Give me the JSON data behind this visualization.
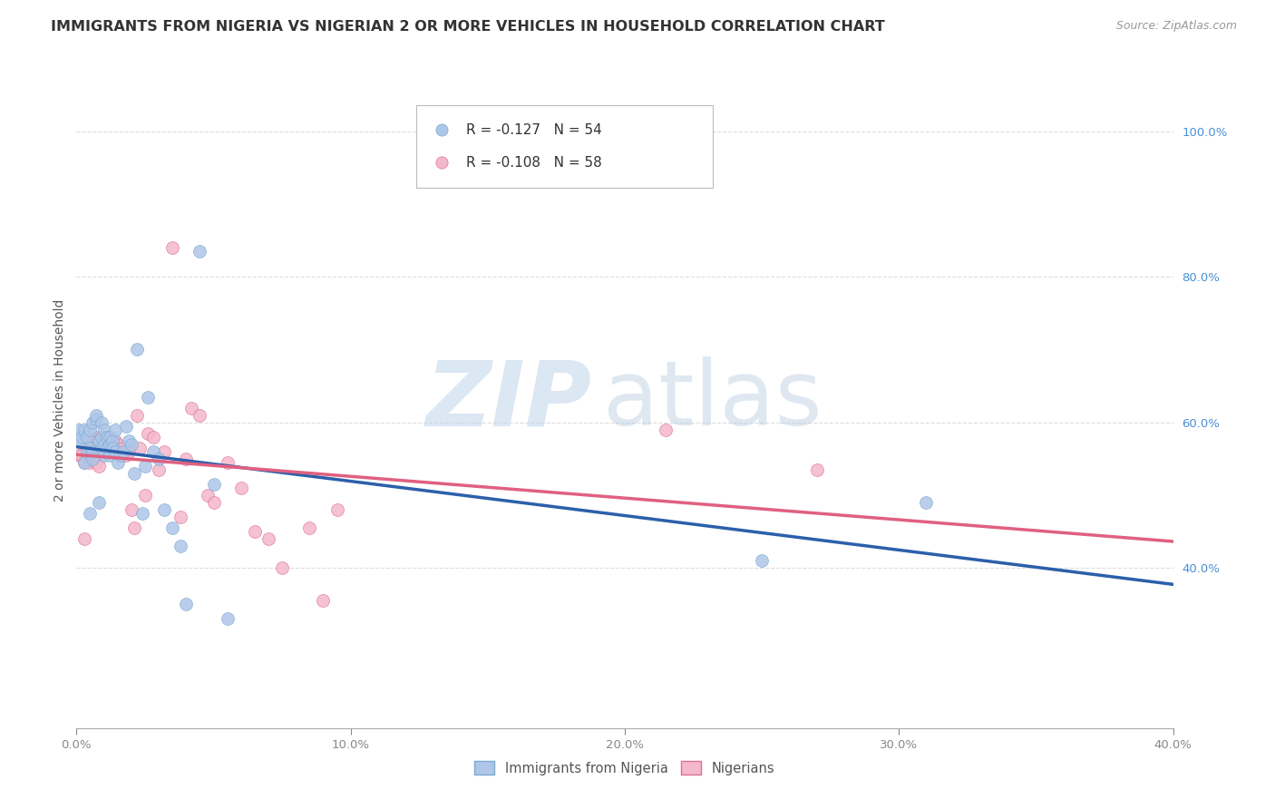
{
  "title": "IMMIGRANTS FROM NIGERIA VS NIGERIAN 2 OR MORE VEHICLES IN HOUSEHOLD CORRELATION CHART",
  "source": "Source: ZipAtlas.com",
  "ylabel_label": "2 or more Vehicles in Household",
  "xlim": [
    0.0,
    0.4
  ],
  "ylim": [
    0.18,
    1.08
  ],
  "xticks": [
    0.0,
    0.1,
    0.2,
    0.3,
    0.4
  ],
  "xtick_labels": [
    "0.0%",
    "10.0%",
    "20.0%",
    "30.0%",
    "40.0%"
  ],
  "yticks_right": [
    0.4,
    0.6,
    0.8,
    1.0
  ],
  "ytick_labels_right": [
    "40.0%",
    "60.0%",
    "80.0%",
    "100.0%"
  ],
  "watermark_zip": "ZIP",
  "watermark_atlas": "atlas",
  "legend1_label": "R = -0.127   N = 54",
  "legend2_label": "R = -0.108   N = 58",
  "scatter1_color": "#aec6e8",
  "scatter2_color": "#f4b8cc",
  "scatter1_edge": "#7aaad0",
  "scatter2_edge": "#e07090",
  "trend1_color": "#2c5faa",
  "trend2_color": "#e06080",
  "marker_size": 100,
  "grid_color": "#dddddd",
  "background_color": "#ffffff",
  "legend_bottom_label1": "Immigrants from Nigeria",
  "legend_bottom_label2": "Nigerians",
  "blue_series_x": [
    0.001,
    0.002,
    0.002,
    0.003,
    0.003,
    0.004,
    0.004,
    0.005,
    0.005,
    0.005,
    0.006,
    0.006,
    0.006,
    0.007,
    0.007,
    0.008,
    0.008,
    0.009,
    0.009,
    0.009,
    0.01,
    0.01,
    0.01,
    0.011,
    0.011,
    0.012,
    0.012,
    0.012,
    0.013,
    0.013,
    0.014,
    0.014,
    0.015,
    0.016,
    0.017,
    0.018,
    0.019,
    0.02,
    0.021,
    0.022,
    0.024,
    0.025,
    0.026,
    0.028,
    0.03,
    0.032,
    0.035,
    0.038,
    0.04,
    0.045,
    0.05,
    0.055,
    0.25,
    0.31
  ],
  "blue_series_y": [
    0.59,
    0.575,
    0.58,
    0.59,
    0.545,
    0.58,
    0.56,
    0.59,
    0.565,
    0.475,
    0.6,
    0.56,
    0.55,
    0.605,
    0.61,
    0.575,
    0.49,
    0.58,
    0.6,
    0.565,
    0.59,
    0.57,
    0.555,
    0.58,
    0.565,
    0.555,
    0.58,
    0.57,
    0.575,
    0.565,
    0.59,
    0.56,
    0.545,
    0.555,
    0.56,
    0.595,
    0.575,
    0.57,
    0.53,
    0.7,
    0.475,
    0.54,
    0.635,
    0.56,
    0.55,
    0.48,
    0.455,
    0.43,
    0.35,
    0.835,
    0.515,
    0.33,
    0.41,
    0.49
  ],
  "pink_series_x": [
    0.001,
    0.002,
    0.003,
    0.003,
    0.004,
    0.005,
    0.005,
    0.006,
    0.006,
    0.007,
    0.007,
    0.008,
    0.008,
    0.009,
    0.009,
    0.01,
    0.01,
    0.011,
    0.011,
    0.012,
    0.012,
    0.013,
    0.013,
    0.014,
    0.014,
    0.015,
    0.015,
    0.016,
    0.016,
    0.017,
    0.018,
    0.019,
    0.02,
    0.021,
    0.022,
    0.023,
    0.025,
    0.026,
    0.028,
    0.03,
    0.032,
    0.035,
    0.038,
    0.04,
    0.042,
    0.045,
    0.048,
    0.05,
    0.055,
    0.06,
    0.065,
    0.07,
    0.075,
    0.085,
    0.09,
    0.095,
    0.215,
    0.27
  ],
  "pink_series_y": [
    0.555,
    0.555,
    0.545,
    0.44,
    0.555,
    0.57,
    0.545,
    0.565,
    0.575,
    0.58,
    0.545,
    0.575,
    0.54,
    0.58,
    0.56,
    0.58,
    0.565,
    0.57,
    0.58,
    0.565,
    0.58,
    0.575,
    0.565,
    0.575,
    0.57,
    0.56,
    0.57,
    0.56,
    0.555,
    0.565,
    0.555,
    0.56,
    0.48,
    0.455,
    0.61,
    0.565,
    0.5,
    0.585,
    0.58,
    0.535,
    0.56,
    0.84,
    0.47,
    0.55,
    0.62,
    0.61,
    0.5,
    0.49,
    0.545,
    0.51,
    0.45,
    0.44,
    0.4,
    0.455,
    0.355,
    0.48,
    0.59,
    0.535
  ],
  "title_fontsize": 11.5,
  "axis_fontsize": 9.5,
  "label_fontsize": 10,
  "source_fontsize": 9
}
